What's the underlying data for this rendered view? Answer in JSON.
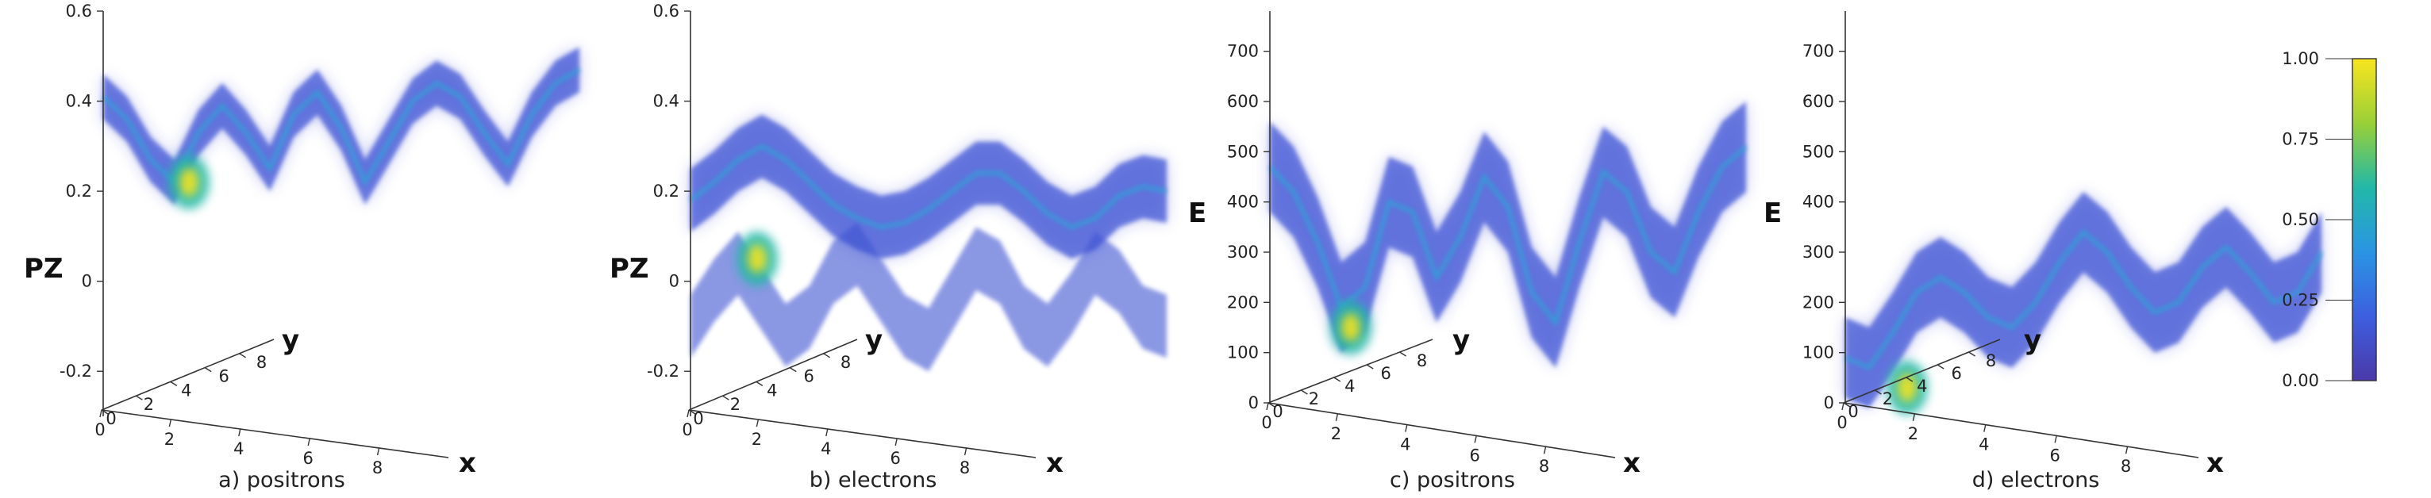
{
  "chart_data": [
    {
      "type": "scatter",
      "caption": "a) positrons",
      "ylabel": "PZ",
      "xlabel": "x",
      "zlabel": "y",
      "yticks": [
        "0.6",
        "0.4",
        "0.2",
        "0",
        "-0.2"
      ],
      "xticks": [
        "0",
        "2",
        "4",
        "6",
        "8"
      ],
      "zticks": [
        "0",
        "2",
        "4",
        "6",
        "8"
      ],
      "ylim": [
        -0.3,
        0.6
      ],
      "xlim": [
        0,
        10
      ],
      "band_centers": [
        0.41,
        0.36,
        0.27,
        0.22,
        0.33,
        0.39,
        0.33,
        0.25,
        0.37,
        0.42,
        0.34,
        0.22,
        0.31,
        0.4,
        0.44,
        0.41,
        0.33,
        0.26,
        0.37,
        0.44,
        0.47
      ],
      "band_spread": 0.05,
      "hotspot": {
        "x": 1.8,
        "y": 0.22
      }
    },
    {
      "type": "scatter",
      "caption": "b) electrons",
      "ylabel": "PZ",
      "xlabel": "x",
      "zlabel": "y",
      "yticks": [
        "0.6",
        "0.4",
        "0.2",
        "0",
        "-0.2"
      ],
      "xticks": [
        "0",
        "2",
        "4",
        "6",
        "8"
      ],
      "zticks": [
        "0",
        "2",
        "4",
        "6",
        "8"
      ],
      "ylim": [
        -0.3,
        0.6
      ],
      "xlim": [
        0,
        10
      ],
      "band_centers": [
        0.18,
        0.22,
        0.27,
        0.3,
        0.27,
        0.22,
        0.17,
        0.14,
        0.12,
        0.13,
        0.16,
        0.2,
        0.24,
        0.24,
        0.2,
        0.15,
        0.12,
        0.14,
        0.19,
        0.21,
        0.2
      ],
      "band_spread": 0.07,
      "lower_band_centers": [
        -0.1,
        -0.02,
        0.04,
        -0.04,
        -0.12,
        -0.08,
        0.02,
        0.06,
        -0.02,
        -0.1,
        -0.13,
        -0.04,
        0.05,
        0.02,
        -0.08,
        -0.12,
        -0.05,
        0.04,
        0.0,
        -0.08,
        -0.1
      ],
      "hotspot": {
        "x": 1.4,
        "y": 0.05
      }
    },
    {
      "type": "scatter",
      "caption": "c) positrons",
      "ylabel": "E",
      "xlabel": "x",
      "zlabel": "y",
      "yticks": [
        "700",
        "600",
        "500",
        "400",
        "300",
        "200",
        "100",
        "0"
      ],
      "xticks": [
        "0",
        "2",
        "4",
        "6",
        "8"
      ],
      "zticks": [
        "0",
        "2",
        "4",
        "6",
        "8"
      ],
      "ylim": [
        0,
        780
      ],
      "xlim": [
        0,
        10
      ],
      "band_centers": [
        470,
        420,
        320,
        190,
        230,
        400,
        380,
        250,
        330,
        450,
        390,
        220,
        160,
        320,
        460,
        420,
        300,
        260,
        380,
        470,
        510
      ],
      "band_spread": 90,
      "hotspot": {
        "x": 1.7,
        "y": 150
      }
    },
    {
      "type": "scatter",
      "caption": "d) electrons",
      "ylabel": "E",
      "xlabel": "x",
      "zlabel": "y",
      "yticks": [
        "700",
        "600",
        "500",
        "400",
        "300",
        "200",
        "100",
        "0"
      ],
      "xticks": [
        "0",
        "2",
        "4",
        "6",
        "8"
      ],
      "zticks": [
        "0",
        "2",
        "4",
        "6",
        "8"
      ],
      "ylim": [
        0,
        780
      ],
      "xlim": [
        0,
        10
      ],
      "band_centers": [
        90,
        70,
        140,
        220,
        250,
        220,
        170,
        150,
        200,
        280,
        340,
        300,
        230,
        180,
        200,
        270,
        310,
        260,
        200,
        220,
        300
      ],
      "band_spread": 80,
      "hotspot": {
        "x": 1.3,
        "y": 30
      }
    }
  ],
  "colorbar": {
    "ticks": [
      "1.00",
      "0.75",
      "0.50",
      "0.25",
      "0.00"
    ],
    "range": [
      0,
      1
    ],
    "colors": [
      "#3b2b9a",
      "#3b5bdc",
      "#2a8fe0",
      "#1fb6a6",
      "#8ccf3a",
      "#f2e21f"
    ]
  }
}
